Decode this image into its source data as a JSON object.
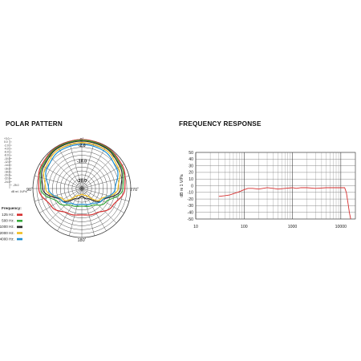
{
  "polar_title": "POLAR PATTERN",
  "freq_title": "FREQUENCY RESPONSE",
  "polar": {
    "scale_label": "dB rel. 1V/Pa",
    "scale_values": [
      "+3.0",
      "0.0",
      "-2.0",
      "-4.0",
      "-6.0",
      "-8.0",
      "-10.0",
      "-12.0",
      "-14.0",
      "-16.0",
      "-18.0",
      "-20.0",
      "-22.0",
      "-24.0",
      "-25.0"
    ],
    "angle_labels": [
      "0˚",
      "90˚",
      "180˚",
      "270˚"
    ],
    "ring_labels": [
      "-2.0",
      "-10.0",
      "-20.0"
    ],
    "legend_title": "Frequency:",
    "legend": [
      {
        "label": "125 Hz.",
        "color": "#d62f2f"
      },
      {
        "label": "500 Hz.",
        "color": "#36a93a"
      },
      {
        "label": "1000 Hz.",
        "color": "#2b2b2b"
      },
      {
        "label": "2000 Hz.",
        "color": "#f0bd1f"
      },
      {
        "label": "4000 Hz.",
        "color": "#1f8fd1"
      }
    ]
  },
  "chart_data": [
    {
      "type": "polar",
      "title": "POLAR PATTERN",
      "rlabel": "dB rel. 1V/Pa",
      "theta_labels": [
        "0˚",
        "90˚",
        "180˚",
        "270˚"
      ],
      "series": [
        {
          "name": "125 Hz.",
          "color": "#d62f2f",
          "theta": [
            0,
            30,
            60,
            90,
            120,
            150,
            180
          ],
          "r_db": [
            0,
            -0.3,
            -1.2,
            -3,
            -7,
            -10.5,
            -11.5
          ]
        },
        {
          "name": "500 Hz.",
          "color": "#36a93a",
          "theta": [
            0,
            30,
            60,
            90,
            120,
            150,
            180
          ],
          "r_db": [
            -0.3,
            -0.6,
            -1.8,
            -4,
            -11,
            -15,
            -16
          ]
        },
        {
          "name": "1000 Hz.",
          "color": "#2b2b2b",
          "theta": [
            0,
            30,
            60,
            90,
            120,
            150,
            180
          ],
          "r_db": [
            -0.8,
            -1,
            -2.5,
            -5,
            -13,
            -19,
            -21
          ]
        },
        {
          "name": "2000 Hz.",
          "color": "#f0bd1f",
          "theta": [
            0,
            30,
            60,
            90,
            120,
            150,
            180
          ],
          "r_db": [
            -1.5,
            -1.8,
            -3.5,
            -6.5,
            -14,
            -21,
            -22
          ]
        },
        {
          "name": "4000 Hz.",
          "color": "#1f8fd1",
          "theta": [
            0,
            30,
            60,
            90,
            120,
            150,
            180
          ],
          "r_db": [
            -2.5,
            -2.7,
            -4.5,
            -8,
            -13,
            -16,
            -17
          ]
        }
      ]
    },
    {
      "type": "line",
      "title": "FREQUENCY RESPONSE",
      "xlabel": "",
      "ylabel": "dB re 1 V/Pa",
      "xscale": "log",
      "xlim": [
        10,
        20000
      ],
      "ylim": [
        -50,
        50
      ],
      "xticks": [
        "10",
        "100",
        "1000",
        "10000"
      ],
      "yticks": [
        50,
        40,
        30,
        20,
        10,
        0,
        -10,
        -20,
        -30,
        -40,
        -50
      ],
      "grid": true,
      "series": [
        {
          "color": "#d62f2f",
          "x": [
            30,
            40,
            50,
            60,
            80,
            100,
            120,
            150,
            200,
            300,
            400,
            500,
            700,
            1000,
            1200,
            1500,
            2000,
            3000,
            5000,
            7000,
            10000,
            12000,
            13000,
            14000,
            15000,
            16000
          ],
          "y": [
            -16,
            -15,
            -14,
            -12,
            -9,
            -6,
            -4,
            -4,
            -5,
            -3,
            -4,
            -5,
            -4,
            -3,
            -4,
            -3,
            -3,
            -4,
            -3,
            -3,
            -3,
            -3,
            -10,
            -25,
            -40,
            -50
          ]
        }
      ]
    }
  ]
}
